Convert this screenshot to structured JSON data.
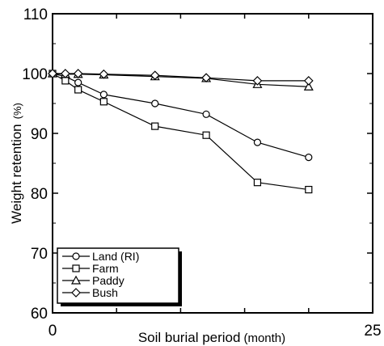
{
  "chart_data": {
    "type": "line",
    "title": "",
    "xlabel": "Soil burial period",
    "xlabel_unit": "(month)",
    "ylabel": "Weight retention",
    "ylabel_unit": "(%)",
    "xlim": [
      0,
      25
    ],
    "ylim": [
      60,
      110
    ],
    "x_ticks": [
      0,
      25
    ],
    "x_tick_labels": [
      "0",
      "25"
    ],
    "y_ticks": [
      60,
      70,
      80,
      90,
      100,
      110
    ],
    "y_tick_labels": [
      "60",
      "70",
      "80",
      "90",
      "100",
      "110"
    ],
    "grid": false,
    "legend_position": "bottom-left",
    "series": [
      {
        "name": "Land (RI)",
        "marker": "circle",
        "x": [
          0,
          1,
          2,
          4,
          8,
          12,
          16,
          20
        ],
        "y": [
          100,
          99.5,
          98.5,
          96.5,
          95,
          93.2,
          88.5,
          86
        ]
      },
      {
        "name": "Farm",
        "marker": "square",
        "x": [
          0,
          1,
          2,
          4,
          8,
          12,
          16,
          20
        ],
        "y": [
          100,
          98.8,
          97.3,
          95.3,
          91.2,
          89.7,
          81.8,
          80.6
        ]
      },
      {
        "name": "Paddy",
        "marker": "triangle",
        "x": [
          0,
          1,
          2,
          4,
          8,
          12,
          16,
          20
        ],
        "y": [
          100,
          99.9,
          99.9,
          99.8,
          99.5,
          99.2,
          98.2,
          97.8
        ]
      },
      {
        "name": "Bush",
        "marker": "diamond",
        "x": [
          0,
          1,
          2,
          4,
          8,
          12,
          16,
          20
        ],
        "y": [
          100,
          100,
          100,
          99.9,
          99.7,
          99.3,
          98.8,
          98.8
        ]
      }
    ]
  }
}
